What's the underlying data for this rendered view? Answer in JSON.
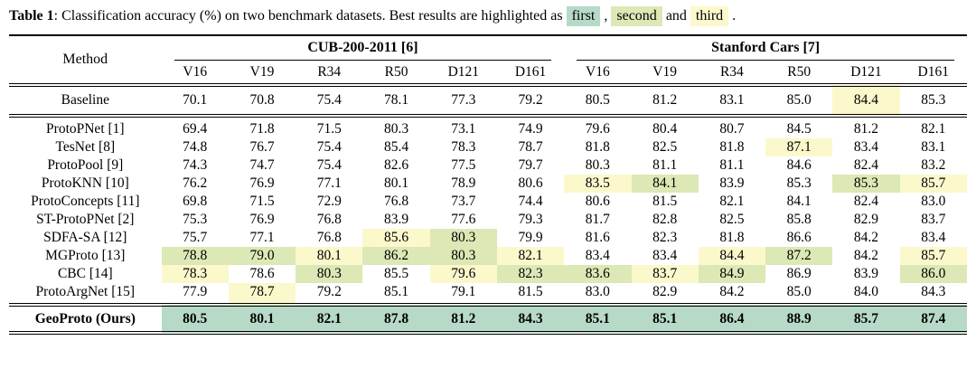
{
  "caption": {
    "label": "Table 1",
    "text": ": Classification accuracy (%) on two benchmark datasets. Best results are highlighted as",
    "chips": [
      {
        "label": "first",
        "rank": "first",
        "suffix": ","
      },
      {
        "label": "second",
        "rank": "second",
        "suffix": "and"
      },
      {
        "label": "third",
        "rank": "third",
        "suffix": "."
      }
    ]
  },
  "colors": {
    "first": "#b7dac8",
    "second": "#dce8b5",
    "third": "#fbf8cc"
  },
  "table": {
    "method_header": "Method",
    "groups": [
      {
        "label": "CUB-200-2011 [6]",
        "columns": [
          "V16",
          "V19",
          "R34",
          "R50",
          "D121",
          "D161"
        ]
      },
      {
        "label": "Stanford Cars [7]",
        "columns": [
          "V16",
          "V19",
          "R34",
          "R50",
          "D121",
          "D161"
        ]
      }
    ],
    "rows": [
      {
        "type": "baseline",
        "method": "Baseline",
        "values": [
          "70.1",
          "70.8",
          "75.4",
          "78.1",
          "77.3",
          "79.2",
          "80.5",
          "81.2",
          "83.1",
          "85.0",
          "84.4",
          "85.3"
        ],
        "highlights": {
          "10": "third"
        }
      },
      {
        "type": "mid",
        "method": "ProtoPNet [1]",
        "values": [
          "69.4",
          "71.8",
          "71.5",
          "80.3",
          "73.1",
          "74.9",
          "79.6",
          "80.4",
          "80.7",
          "84.5",
          "81.2",
          "82.1"
        ],
        "highlights": {}
      },
      {
        "type": "mid",
        "method": "TesNet [8]",
        "values": [
          "74.8",
          "76.7",
          "75.4",
          "85.4",
          "78.3",
          "78.7",
          "81.8",
          "82.5",
          "81.8",
          "87.1",
          "83.4",
          "83.1"
        ],
        "highlights": {
          "9": "third"
        }
      },
      {
        "type": "mid",
        "method": "ProtoPool [9]",
        "values": [
          "74.3",
          "74.7",
          "75.4",
          "82.6",
          "77.5",
          "79.7",
          "80.3",
          "81.1",
          "81.1",
          "84.6",
          "82.4",
          "83.2"
        ],
        "highlights": {}
      },
      {
        "type": "mid",
        "method": "ProtoKNN [10]",
        "values": [
          "76.2",
          "76.9",
          "77.1",
          "80.1",
          "78.9",
          "80.6",
          "83.5",
          "84.1",
          "83.9",
          "85.3",
          "85.3",
          "85.7"
        ],
        "highlights": {
          "6": "third",
          "7": "second",
          "10": "second",
          "11": "third"
        }
      },
      {
        "type": "mid",
        "method": "ProtoConcepts [11]",
        "values": [
          "69.8",
          "71.5",
          "72.9",
          "76.8",
          "73.7",
          "74.4",
          "80.6",
          "81.5",
          "82.1",
          "84.1",
          "82.4",
          "83.0"
        ],
        "highlights": {}
      },
      {
        "type": "mid",
        "method": "ST-ProtoPNet [2]",
        "values": [
          "75.3",
          "76.9",
          "76.8",
          "83.9",
          "77.6",
          "79.3",
          "81.7",
          "82.8",
          "82.5",
          "85.8",
          "82.9",
          "83.7"
        ],
        "highlights": {}
      },
      {
        "type": "mid",
        "method": "SDFA-SA [12]",
        "values": [
          "75.7",
          "77.1",
          "76.8",
          "85.6",
          "80.3",
          "79.9",
          "81.6",
          "82.3",
          "81.8",
          "86.6",
          "84.2",
          "83.4"
        ],
        "highlights": {
          "3": "third",
          "4": "second"
        }
      },
      {
        "type": "mid",
        "method": "MGProto [13]",
        "values": [
          "78.8",
          "79.0",
          "80.1",
          "86.2",
          "80.3",
          "82.1",
          "83.4",
          "83.4",
          "84.4",
          "87.2",
          "84.2",
          "85.7"
        ],
        "highlights": {
          "0": "second",
          "1": "second",
          "2": "third",
          "3": "second",
          "4": "second",
          "5": "third",
          "8": "third",
          "9": "second",
          "11": "third"
        }
      },
      {
        "type": "mid",
        "method": "CBC [14]",
        "values": [
          "78.3",
          "78.6",
          "80.3",
          "85.5",
          "79.6",
          "82.3",
          "83.6",
          "83.7",
          "84.9",
          "86.9",
          "83.9",
          "86.0"
        ],
        "highlights": {
          "0": "third",
          "2": "second",
          "4": "third",
          "5": "second",
          "6": "second",
          "7": "third",
          "8": "second",
          "11": "second"
        }
      },
      {
        "type": "mid",
        "method": "ProtoArgNet [15]",
        "values": [
          "77.9",
          "78.7",
          "79.2",
          "85.1",
          "79.1",
          "81.5",
          "83.0",
          "82.9",
          "84.2",
          "85.0",
          "84.0",
          "84.3"
        ],
        "highlights": {
          "1": "third"
        }
      },
      {
        "type": "ours",
        "method": "GeoProto (Ours)",
        "values": [
          "80.5",
          "80.1",
          "82.1",
          "87.8",
          "81.2",
          "84.3",
          "85.1",
          "85.1",
          "86.4",
          "88.9",
          "85.7",
          "87.4"
        ],
        "highlights": {
          "0": "first",
          "1": "first",
          "2": "first",
          "3": "first",
          "4": "first",
          "5": "first",
          "6": "first",
          "7": "first",
          "8": "first",
          "9": "first",
          "10": "first",
          "11": "first"
        }
      }
    ]
  }
}
